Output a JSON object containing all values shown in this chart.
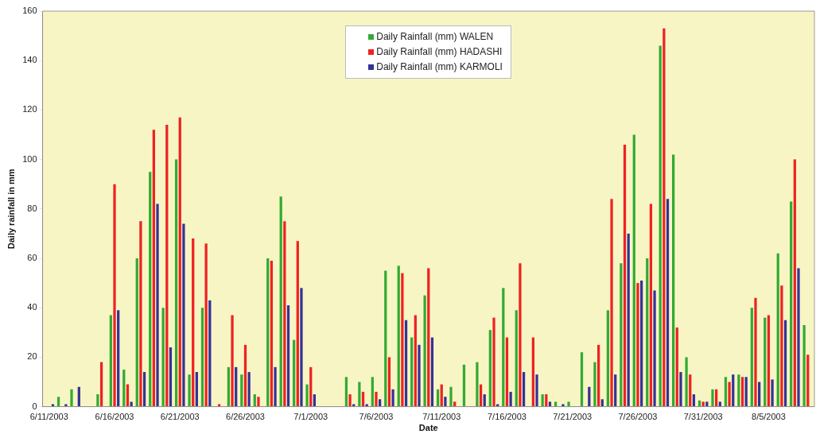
{
  "chart_data": {
    "type": "bar",
    "xlabel": "Date",
    "ylabel": "Daily rainfall in mm",
    "categories": [
      "6/11/2003",
      null,
      null,
      null,
      null,
      "6/16/2003",
      null,
      null,
      null,
      null,
      "6/21/2003",
      null,
      null,
      null,
      null,
      "6/26/2003",
      null,
      null,
      null,
      null,
      "7/1/2003",
      null,
      null,
      null,
      null,
      "7/6/2003",
      null,
      null,
      null,
      null,
      "7/11/2003",
      null,
      null,
      null,
      null,
      "7/16/2003",
      null,
      null,
      null,
      null,
      "7/21/2003",
      null,
      null,
      null,
      null,
      "7/26/2003",
      null,
      null,
      null,
      null,
      "7/31/2003",
      null,
      null,
      null,
      null,
      "8/5/2003",
      null,
      null,
      null
    ],
    "series": [
      {
        "name": "Daily Rainfall (mm) WALEN",
        "color": "#33aa33",
        "values": [
          0,
          4,
          7,
          0,
          5,
          37,
          15,
          60,
          95,
          40,
          100,
          13,
          40,
          0,
          16,
          13,
          5,
          60,
          85,
          27,
          9,
          0,
          0,
          12,
          10,
          12,
          55,
          57,
          28,
          45,
          7,
          8,
          17,
          18,
          31,
          48,
          39,
          0,
          5,
          2,
          2,
          22,
          18,
          39,
          58,
          110,
          60,
          146,
          102,
          20,
          2.5,
          7,
          12,
          13,
          40,
          36,
          62,
          83,
          33
        ]
      },
      {
        "name": "Daily Rainfall (mm) HADASHI",
        "color": "#ee2222",
        "values": [
          0,
          0,
          0,
          0,
          18,
          90,
          9,
          75,
          112,
          114,
          117,
          68,
          66,
          1,
          37,
          25,
          4,
          59,
          75,
          67,
          16,
          0,
          0,
          5,
          6,
          6,
          20,
          54,
          37,
          56,
          9,
          2,
          0,
          9,
          36,
          28,
          58,
          28,
          5,
          0,
          0,
          0,
          25,
          84,
          106,
          50,
          82,
          153,
          32,
          13,
          2,
          7,
          10,
          12,
          44,
          37,
          49,
          100,
          21
        ]
      },
      {
        "name": "Daily Rainfall (mm) KARMOLI",
        "color": "#333399",
        "values": [
          1,
          1,
          8,
          0,
          0,
          39,
          2,
          14,
          82,
          24,
          74,
          14,
          43,
          0,
          16,
          14,
          0,
          16,
          41,
          48,
          5,
          0,
          0,
          1,
          1,
          3,
          7,
          35,
          25,
          28,
          4,
          0,
          0,
          5,
          1,
          6,
          14,
          13,
          2,
          1,
          0,
          8,
          3,
          13,
          70,
          51,
          47,
          84,
          14,
          5,
          2,
          2,
          13,
          12,
          10,
          11,
          35,
          56,
          null
        ]
      }
    ],
    "ylim": [
      0,
      160
    ],
    "yticks": [
      0,
      20,
      40,
      60,
      80,
      100,
      120,
      140,
      160
    ],
    "grid": false,
    "legend": "top"
  }
}
